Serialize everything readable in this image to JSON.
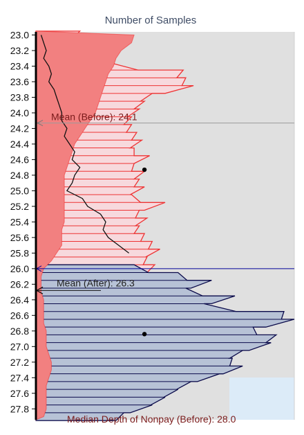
{
  "chart_data": {
    "type": "area",
    "orientation": "horizontal",
    "title": "Number of Samples",
    "ylim": [
      22.96,
      27.94
    ],
    "xlim": [
      0,
      100
    ],
    "y_ticks": [
      "23.0",
      "23.2",
      "23.4",
      "23.6",
      "23.8",
      "24.0",
      "24.2",
      "24.4",
      "24.6",
      "24.8",
      "25.0",
      "25.2",
      "25.4",
      "25.6",
      "25.8",
      "26.0",
      "26.2",
      "26.4",
      "26.6",
      "26.8",
      "27.0",
      "27.2",
      "27.4",
      "27.6",
      "27.8"
    ],
    "colors": {
      "plot_bg": "#e0e0e0",
      "light_blue_region": "#dcebf8",
      "before_fill": "#f7d9dd",
      "before_line": "#ee3333",
      "after_fill": "#b7c2d6",
      "after_line": "#0a0a4a",
      "cumulative_fill": "#f28080",
      "axis": "#000000",
      "threshold": "#000099",
      "annotation_text": "#7a1a1a"
    },
    "series": [
      {
        "name": "",
        "y": [
          23.0,
          23.1,
          23.2,
          23.3,
          23.4,
          23.5,
          23.6,
          23.7,
          23.8,
          23.9,
          24.0,
          24.1,
          24.2,
          24.3,
          24.4,
          24.5,
          24.6,
          24.7,
          24.8,
          24.9,
          25.0,
          25.1,
          25.2,
          25.3,
          25.4,
          25.5,
          25.6,
          25.7,
          25.8,
          25.9,
          26.0
        ],
        "x": [
          17,
          17,
          20,
          20,
          28,
          57,
          58,
          61,
          45,
          42,
          40,
          37,
          37,
          39,
          41,
          38,
          44,
          38,
          42,
          40,
          42,
          37,
          50,
          40,
          43,
          40,
          42,
          45,
          48,
          43,
          46
        ]
      },
      {
        "name": "",
        "y": [
          26.0,
          26.1,
          26.2,
          26.3,
          26.4,
          26.5,
          26.6,
          26.7,
          26.8,
          26.9,
          27.0,
          27.1,
          27.2,
          27.3,
          27.4,
          27.5,
          27.6,
          27.7,
          27.8,
          27.9
        ],
        "x": [
          38,
          55,
          68,
          58,
          77,
          65,
          96,
          100,
          84,
          93,
          91,
          80,
          76,
          80,
          71,
          60,
          55,
          50,
          45,
          34
        ]
      },
      {
        "name": "",
        "y": [
          23.0,
          23.1,
          23.2,
          23.3,
          23.4,
          23.5,
          23.6,
          23.7,
          23.8,
          23.9,
          24.0,
          24.1,
          24.2,
          24.3,
          24.4,
          24.5,
          24.6,
          24.7,
          24.8,
          24.9,
          25.0,
          25.1,
          25.2,
          25.3,
          25.4,
          25.5,
          25.6,
          25.7,
          25.8,
          25.9,
          26.0,
          26.1,
          26.2,
          26.3,
          26.4,
          26.5,
          26.6,
          26.7,
          26.8,
          26.9,
          27.0,
          27.1,
          27.2,
          27.3,
          27.4,
          27.5,
          27.6,
          27.7,
          27.8,
          27.9
        ],
        "x": [
          38,
          37,
          33,
          31,
          30,
          28,
          27,
          26,
          25,
          24,
          23,
          21,
          19,
          17,
          15,
          14,
          13,
          12,
          11,
          11,
          11,
          11,
          11,
          11,
          11,
          10,
          10,
          10,
          8,
          6,
          3,
          2,
          2,
          2,
          3,
          3,
          3,
          3,
          4,
          4,
          4,
          5,
          6,
          6,
          5,
          4,
          4,
          4,
          4,
          3
        ]
      },
      {
        "name": "",
        "y": [
          23.0,
          23.1,
          23.2,
          23.3,
          23.4,
          23.5,
          23.6,
          23.7,
          23.8,
          23.9,
          24.0,
          24.1,
          24.2,
          24.3,
          24.4,
          24.5,
          24.6,
          24.7,
          24.8,
          24.9,
          25.0,
          25.1,
          25.2,
          25.3,
          25.4,
          25.5,
          25.6,
          25.7,
          25.8
        ],
        "x": [
          2,
          3,
          4,
          3,
          5,
          6,
          5,
          7,
          8,
          9,
          10,
          10,
          12,
          11,
          13,
          15,
          14,
          17,
          15,
          14,
          12,
          18,
          20,
          25,
          27,
          26,
          28,
          32,
          36
        ]
      }
    ],
    "annotations": [
      {
        "text": "Mean (Before): 24.1",
        "y": 24.13
      },
      {
        "text": "Mean (After): 26.3",
        "y": 26.28
      },
      {
        "text": "Median Depth of Nonpay (Before): 28.0",
        "y": 27.97
      }
    ],
    "threshold_y": 26.0,
    "median_points": [
      {
        "x": 42,
        "y": 24.73
      },
      {
        "x": 42,
        "y": 26.84
      }
    ]
  }
}
